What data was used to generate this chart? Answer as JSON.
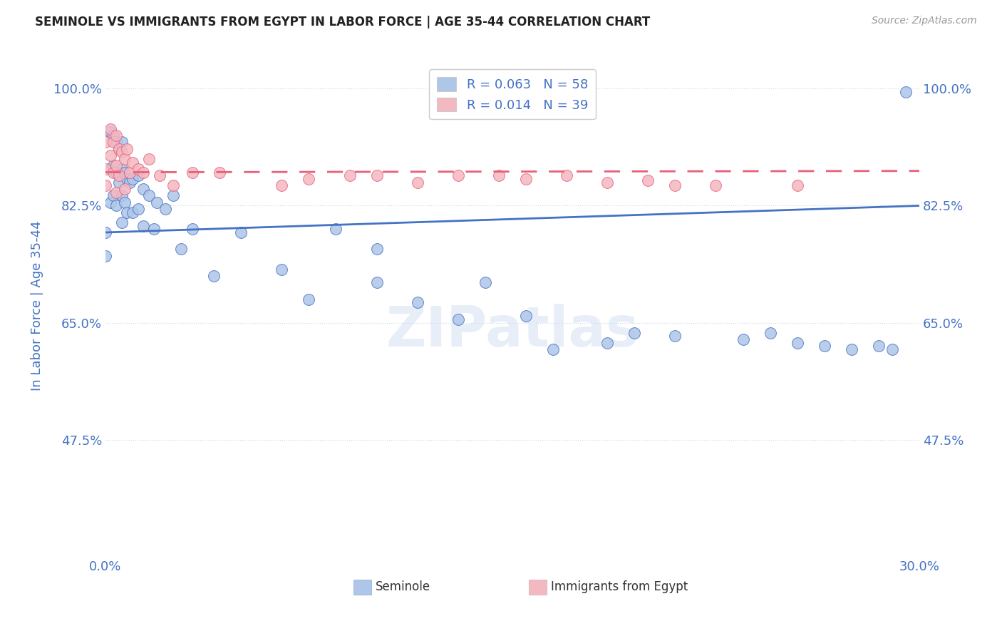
{
  "title": "SEMINOLE VS IMMIGRANTS FROM EGYPT IN LABOR FORCE | AGE 35-44 CORRELATION CHART",
  "source": "Source: ZipAtlas.com",
  "ylabel": "In Labor Force | Age 35-44",
  "xmin": 0.0,
  "xmax": 0.3,
  "ymin": 0.3,
  "ymax": 1.05,
  "yticks": [
    0.475,
    0.65,
    0.825,
    1.0
  ],
  "ytick_labels": [
    "47.5%",
    "65.0%",
    "82.5%",
    "100.0%"
  ],
  "xtick_labels": [
    "0.0%",
    "30.0%"
  ],
  "watermark": "ZIPatlas",
  "legend_items": [
    {
      "label": "R = 0.063   N = 58",
      "color": "#aec6e8"
    },
    {
      "label": "R = 0.014   N = 39",
      "color": "#f4b8c1"
    }
  ],
  "seminole_color": "#aec6e8",
  "egypt_color": "#f4b8c1",
  "trend_blue": "#4472c4",
  "trend_pink": "#e8607a",
  "seminole_x": [
    0.0,
    0.0,
    0.002,
    0.002,
    0.002,
    0.003,
    0.003,
    0.003,
    0.004,
    0.004,
    0.004,
    0.005,
    0.005,
    0.006,
    0.006,
    0.006,
    0.006,
    0.007,
    0.007,
    0.008,
    0.008,
    0.009,
    0.01,
    0.01,
    0.012,
    0.012,
    0.014,
    0.014,
    0.016,
    0.018,
    0.019,
    0.022,
    0.025,
    0.028,
    0.032,
    0.04,
    0.05,
    0.065,
    0.075,
    0.085,
    0.1,
    0.1,
    0.115,
    0.13,
    0.14,
    0.155,
    0.165,
    0.185,
    0.195,
    0.21,
    0.235,
    0.245,
    0.255,
    0.265,
    0.275,
    0.285,
    0.29,
    0.295
  ],
  "seminole_y": [
    0.785,
    0.75,
    0.935,
    0.88,
    0.83,
    0.93,
    0.885,
    0.84,
    0.92,
    0.875,
    0.825,
    0.91,
    0.86,
    0.92,
    0.88,
    0.84,
    0.8,
    0.875,
    0.83,
    0.865,
    0.815,
    0.86,
    0.865,
    0.815,
    0.87,
    0.82,
    0.85,
    0.795,
    0.84,
    0.79,
    0.83,
    0.82,
    0.84,
    0.76,
    0.79,
    0.72,
    0.785,
    0.73,
    0.685,
    0.79,
    0.76,
    0.71,
    0.68,
    0.655,
    0.71,
    0.66,
    0.61,
    0.62,
    0.635,
    0.63,
    0.625,
    0.635,
    0.62,
    0.615,
    0.61,
    0.615,
    0.61,
    0.995
  ],
  "egypt_x": [
    0.0,
    0.0,
    0.0,
    0.002,
    0.002,
    0.003,
    0.003,
    0.004,
    0.004,
    0.004,
    0.005,
    0.005,
    0.006,
    0.007,
    0.007,
    0.008,
    0.009,
    0.01,
    0.012,
    0.014,
    0.016,
    0.02,
    0.025,
    0.032,
    0.042,
    0.065,
    0.075,
    0.09,
    0.1,
    0.115,
    0.13,
    0.145,
    0.155,
    0.17,
    0.185,
    0.2,
    0.21,
    0.225,
    0.255
  ],
  "egypt_y": [
    0.92,
    0.88,
    0.855,
    0.94,
    0.9,
    0.92,
    0.875,
    0.93,
    0.885,
    0.845,
    0.91,
    0.87,
    0.905,
    0.895,
    0.85,
    0.91,
    0.875,
    0.89,
    0.88,
    0.875,
    0.895,
    0.87,
    0.855,
    0.875,
    0.875,
    0.855,
    0.865,
    0.87,
    0.87,
    0.86,
    0.87,
    0.87,
    0.865,
    0.87,
    0.86,
    0.863,
    0.855,
    0.855,
    0.855
  ],
  "background_color": "#ffffff",
  "plot_bg_color": "#ffffff",
  "grid_color": "#d0d8e8",
  "title_color": "#222222",
  "tick_color": "#4472c4",
  "sem_trend_x0": 0.0,
  "sem_trend_x1": 0.3,
  "sem_trend_y0": 0.785,
  "sem_trend_y1": 0.825,
  "egy_trend_x0": 0.0,
  "egy_trend_x1": 0.3,
  "egy_trend_y0": 0.875,
  "egy_trend_y1": 0.877
}
